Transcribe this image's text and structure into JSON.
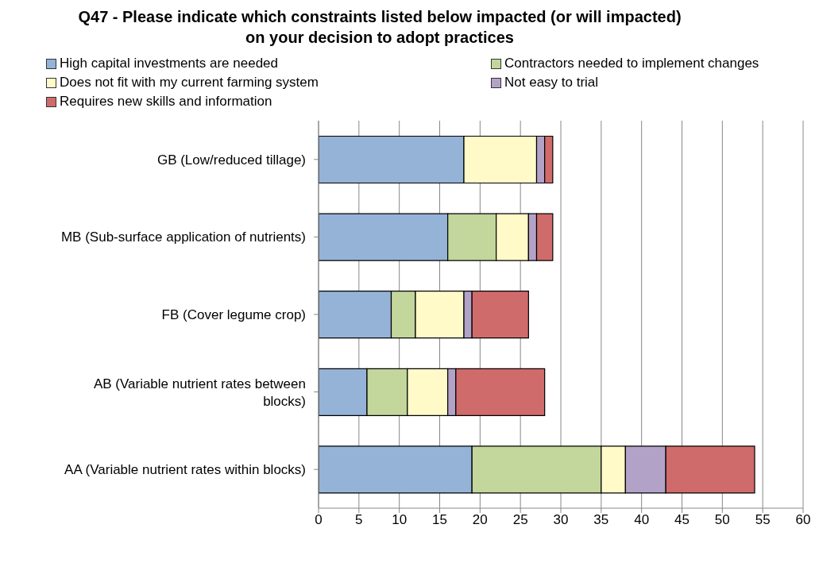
{
  "chart_data": {
    "type": "bar",
    "orientation": "horizontal",
    "stacked": true,
    "title": "Q47 - Please indicate which constraints listed below impacted (or will impacted) on your decision to adopt practices",
    "categories": [
      "GB (Low/reduced tillage)",
      "MB (Sub-surface application of nutrients)",
      "FB (Cover legume crop)",
      "AB (Variable nutrient rates between blocks)",
      "AA (Variable nutrient rates within blocks)"
    ],
    "series": [
      {
        "name": "High capital investments are needed",
        "color": "#95b3d7",
        "values": [
          18,
          16,
          9,
          6,
          19
        ]
      },
      {
        "name": "Contractors needed to implement changes",
        "color": "#c3d69b",
        "values": [
          0,
          6,
          3,
          5,
          16
        ]
      },
      {
        "name": "Does not fit with my current farming system",
        "color": "#fffac8",
        "values": [
          9,
          4,
          6,
          5,
          3
        ]
      },
      {
        "name": "Not easy to trial",
        "color": "#b3a2c7",
        "values": [
          1,
          1,
          1,
          1,
          5
        ]
      },
      {
        "name": "Requires new skills and information",
        "color": "#d06b6b",
        "values": [
          1,
          2,
          7,
          11,
          11
        ]
      }
    ],
    "xlim": [
      0,
      60
    ],
    "xticks": [
      0,
      5,
      10,
      15,
      20,
      25,
      30,
      35,
      40,
      45,
      50,
      55,
      60
    ],
    "grid": "x",
    "legend": "top"
  }
}
